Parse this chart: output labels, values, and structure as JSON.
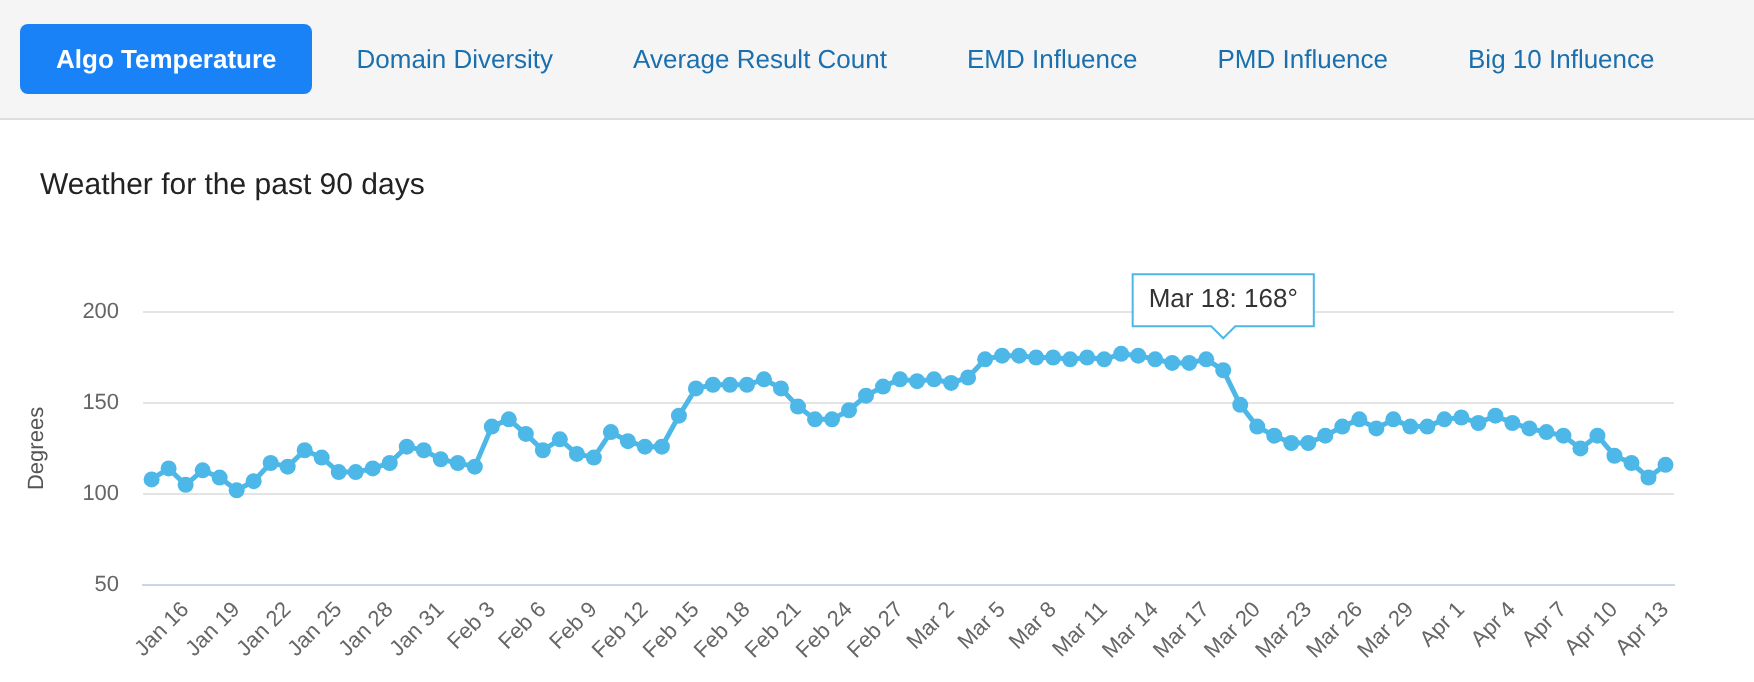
{
  "chart_data": {
    "type": "line",
    "title": "Weather for the past 90 days",
    "ylabel": "Degrees",
    "categories": [
      null,
      null,
      "Jan 16",
      null,
      null,
      "Jan 19",
      null,
      null,
      "Jan 22",
      null,
      null,
      "Jan 25",
      null,
      null,
      "Jan 28",
      null,
      null,
      "Jan 31",
      null,
      null,
      "Feb 3",
      null,
      null,
      "Feb 6",
      null,
      null,
      "Feb 9",
      null,
      null,
      "Feb 12",
      null,
      null,
      "Feb 15",
      null,
      null,
      "Feb 18",
      null,
      null,
      "Feb 21",
      null,
      null,
      "Feb 24",
      null,
      null,
      "Feb 27",
      null,
      null,
      "Mar 2",
      null,
      null,
      "Mar 5",
      null,
      null,
      "Mar 8",
      null,
      null,
      "Mar 11",
      null,
      null,
      "Mar 14",
      null,
      null,
      "Mar 17",
      null,
      null,
      "Mar 20",
      null,
      null,
      "Mar 23",
      null,
      null,
      "Mar 26",
      null,
      null,
      "Mar 29",
      null,
      null,
      "Apr 1",
      null,
      null,
      "Apr 4",
      null,
      null,
      "Apr 7",
      null,
      null,
      "Apr 10",
      null,
      null,
      "Apr 13"
    ],
    "series": [
      {
        "color": "#4db8e8",
        "values": [
          108,
          114,
          105,
          113,
          109,
          102,
          107,
          117,
          115,
          124,
          120,
          112,
          112,
          114,
          117,
          126,
          124,
          119,
          117,
          115,
          137,
          141,
          133,
          124,
          130,
          122,
          120,
          134,
          129,
          126,
          126,
          143,
          158,
          160,
          160,
          160,
          163,
          158,
          148,
          141,
          141,
          146,
          154,
          159,
          163,
          162,
          163,
          161,
          164,
          174,
          176,
          176,
          175,
          175,
          174,
          175,
          174,
          177,
          176,
          174,
          172,
          172,
          174,
          168,
          149,
          137,
          132,
          128,
          128,
          132,
          137,
          141,
          136,
          141,
          137,
          137,
          141,
          142,
          139,
          143,
          139,
          136,
          134,
          132,
          125,
          132,
          121,
          117,
          109,
          116
        ]
      }
    ],
    "ylim": [
      50,
      200
    ],
    "yticks": [
      50,
      100,
      150,
      200
    ],
    "grid": "y",
    "marker": "circle",
    "legend": false,
    "annotations": [
      "Algo Temperature",
      "Domain Diversity",
      "Average Result Count",
      "EMD Influence",
      "PMD Influence",
      "Big 10 Influence",
      {
        "text": "Mar 18: 168°",
        "y": 168
      }
    ]
  }
}
